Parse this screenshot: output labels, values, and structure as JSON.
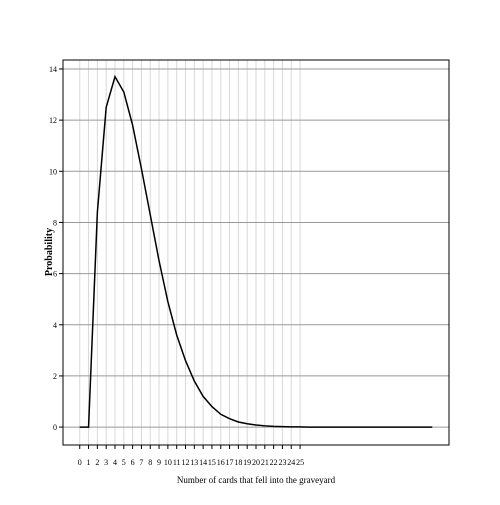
{
  "chart_data": {
    "type": "line",
    "x_label": "Number of cards that fell into the graveyard",
    "y_label": "Probability",
    "x": [
      0,
      1,
      2,
      3,
      4,
      5,
      6,
      7,
      8,
      9,
      10,
      11,
      12,
      13,
      14,
      15,
      16,
      17,
      18,
      19,
      20,
      21,
      22,
      23,
      24,
      25,
      26,
      27,
      28,
      29,
      30,
      31,
      32,
      33,
      34,
      35,
      36,
      37,
      38,
      39,
      40
    ],
    "series": [
      {
        "color": "#000000",
        "values": [
          0,
          0,
          8.4,
          12.5,
          13.7,
          13.1,
          11.8,
          10.1,
          8.3,
          6.5,
          4.9,
          3.6,
          2.6,
          1.8,
          1.2,
          0.8,
          0.5,
          0.33,
          0.2,
          0.13,
          0.08,
          0.05,
          0.03,
          0.02,
          0.01,
          0.01,
          0,
          0,
          0,
          0,
          0,
          0,
          0,
          0,
          0,
          0,
          0,
          0,
          0,
          0,
          0
        ]
      }
    ],
    "xlim": [
      -1.9,
      41.9
    ],
    "ylim": [
      -0.7,
      14.35
    ],
    "xticks": [
      0,
      1,
      2,
      3,
      4,
      5,
      6,
      7,
      8,
      9,
      10,
      11,
      12,
      13,
      14,
      15,
      16,
      17,
      18,
      19,
      20,
      21,
      22,
      23,
      24,
      25
    ],
    "yticks": [
      0,
      2,
      4,
      6,
      8,
      10,
      12,
      14
    ],
    "grid": true
  }
}
